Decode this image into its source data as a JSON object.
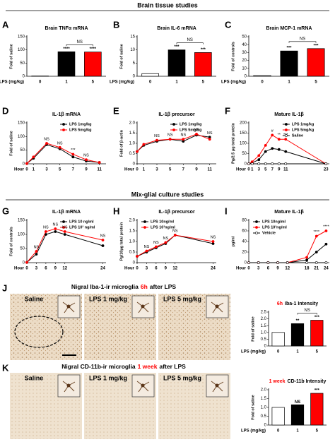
{
  "sections": [
    "Brain tissue studies",
    "Mix-glial culture studies"
  ],
  "images": [
    {
      "panel": "J",
      "title_pre": "Nigral Iba-1-ir microglia",
      "title_highlight": "6h",
      "title_post": "after LPS",
      "labels": [
        "Saline",
        "LPS 1 mg/kg",
        "LPS 5 mg/kg"
      ]
    },
    {
      "panel": "K",
      "title_pre": "Nigral CD-11b-ir microglia",
      "title_highlight": "1 week",
      "title_post": "after LPS",
      "labels": [
        "Saline",
        "LPS 1 mg/kg",
        "LPS 5 mg/kg"
      ]
    }
  ],
  "chart_data": [
    {
      "type": "bar",
      "panel": "A",
      "title": "Brain TNFα mRNA",
      "ylabel": "Fold of saline",
      "xlabel": "LPS (mg/kg)",
      "categories": [
        "0",
        "1",
        "5"
      ],
      "values": [
        1,
        93,
        92
      ],
      "colors": [
        "#ffffff",
        "#000000",
        "#ff0000"
      ],
      "ylim": [
        0,
        150
      ],
      "yticks": [
        0,
        50,
        100,
        150
      ],
      "annotations": [
        "****",
        "****",
        "NS"
      ]
    },
    {
      "type": "bar",
      "panel": "B",
      "title": "Brain IL-6 mRNA",
      "ylabel": "Fold of saline",
      "xlabel": "LPS (mg/kg)",
      "categories": [
        "0",
        "1",
        "5"
      ],
      "values": [
        1,
        10,
        9
      ],
      "colors": [
        "#ffffff",
        "#000000",
        "#ff0000"
      ],
      "ylim": [
        0,
        15
      ],
      "yticks": [
        0,
        5,
        10,
        15
      ],
      "annotations": [
        "***",
        "***",
        "NS"
      ]
    },
    {
      "type": "bar",
      "panel": "C",
      "title": "Brain MCP-1 mRNA",
      "ylabel": "Fold of controls",
      "xlabel": "LPS (mg/kg)",
      "categories": [
        "0",
        "1",
        "5"
      ],
      "values": [
        1,
        32,
        35
      ],
      "colors": [
        "#ffffff",
        "#000000",
        "#ff0000"
      ],
      "ylim": [
        0,
        50
      ],
      "yticks": [
        0,
        10,
        20,
        30,
        40,
        50
      ],
      "annotations": [
        "***",
        "***",
        "NS"
      ]
    },
    {
      "type": "line",
      "panel": "D",
      "title": "IL-1β mRNA",
      "ylabel": "Fold of saline",
      "xlabel": "Hour",
      "x": [
        0,
        1,
        3,
        5,
        7,
        9,
        11
      ],
      "xlim": [
        0,
        12
      ],
      "xticks": [
        0,
        1,
        3,
        5,
        7,
        9,
        11
      ],
      "ylim": [
        0,
        150
      ],
      "yticks": [
        0,
        50,
        100,
        150
      ],
      "legend": "upper right",
      "series": [
        {
          "name": "LPS 1mg/kg",
          "color": "#000000",
          "values": [
            1,
            20,
            70,
            55,
            25,
            10,
            5
          ]
        },
        {
          "name": "LPS 5mg/kg",
          "color": "#ff0000",
          "values": [
            1,
            25,
            75,
            60,
            35,
            15,
            5
          ]
        }
      ],
      "annotations": [
        "NS",
        "NS",
        "***",
        "NS"
      ]
    },
    {
      "type": "line",
      "panel": "E",
      "title": "IL-1β precursor",
      "ylabel": "Fold of β-actin",
      "xlabel": "Hour",
      "x": [
        0,
        1,
        3,
        5,
        7,
        9,
        11
      ],
      "xlim": [
        0,
        12
      ],
      "xticks": [
        0,
        1,
        3,
        5,
        7,
        9,
        11
      ],
      "ylim": [
        0,
        2
      ],
      "yticks": [
        0,
        {
          "value": 0.5,
          "label": "0.5"
        },
        {
          "value": 1,
          "label": "1.0"
        },
        {
          "value": 1.5,
          "label": "1.5"
        },
        {
          "value": 2,
          "label": "2.0"
        }
      ],
      "legend": "upper right",
      "series": [
        {
          "name": "LPS 1mg/kg",
          "color": "#000000",
          "values": [
            0.6,
            0.9,
            1.1,
            1.2,
            1.1,
            1.4,
            1.3
          ]
        },
        {
          "name": "LPS 5mg/kg",
          "color": "#ff0000",
          "values": [
            0.6,
            0.95,
            1.15,
            1.2,
            1.2,
            1.45,
            1.2
          ]
        }
      ],
      "annotations": [
        "NS",
        "NS",
        "NS",
        "NS",
        "NS"
      ]
    },
    {
      "type": "line",
      "panel": "F",
      "title": "Mature IL-1β",
      "ylabel": "Pg/2.5 μg total protein",
      "xlabel": "Hour",
      "x": [
        0,
        1,
        3,
        5,
        7,
        9,
        11,
        23
      ],
      "xlim": [
        0,
        24
      ],
      "xticks": [
        0,
        1,
        3,
        5,
        7,
        9,
        11,
        23
      ],
      "ylim": [
        0,
        200
      ],
      "yticks": [
        0,
        50,
        100,
        150,
        200
      ],
      "legend": "upper right",
      "series": [
        {
          "name": "LPS 1mg/kg",
          "color": "#000000",
          "values": [
            0,
            5,
            20,
            60,
            75,
            70,
            60,
            0
          ]
        },
        {
          "name": "LPS 5mg/kg",
          "color": "#ff0000",
          "values": [
            0,
            10,
            40,
            90,
            140,
            120,
            120,
            0
          ]
        },
        {
          "name": "Saline",
          "color": "#ffffff",
          "values": [
            0,
            0,
            0,
            0,
            0,
            0,
            0,
            0
          ]
        }
      ],
      "annotations": [
        "#",
        "**",
        "***"
      ]
    },
    {
      "type": "line",
      "panel": "G",
      "title": "IL-1β mRNA",
      "ylabel": "Fold of controls",
      "xlabel": "Hour",
      "x": [
        0,
        3,
        6,
        9,
        12,
        24
      ],
      "xlim": [
        0,
        25
      ],
      "xticks": [
        0,
        3,
        6,
        9,
        12,
        24
      ],
      "ylim": [
        0,
        150
      ],
      "yticks": [
        0,
        50,
        100,
        150
      ],
      "legend": "upper right",
      "series": [
        {
          "name": "LPS 10 ng/ml",
          "color": "#000000",
          "values": [
            1,
            30,
            100,
            110,
            100,
            60
          ]
        },
        {
          "name": "LPS 10³ ng/ml",
          "color": "#ff0000",
          "values": [
            1,
            40,
            110,
            120,
            110,
            80
          ]
        }
      ],
      "annotations": [
        "NS",
        "NS",
        "NS",
        "NS",
        "NS"
      ]
    },
    {
      "type": "line",
      "panel": "H",
      "title": "IL-1β precursor",
      "ylabel": "Pg/10μg total protein",
      "xlabel": "Hour",
      "x": [
        0,
        3,
        6,
        9,
        12,
        24
      ],
      "xlim": [
        0,
        25
      ],
      "xticks": [
        0,
        3,
        6,
        9,
        12,
        24
      ],
      "ylim": [
        0,
        2
      ],
      "yticks": [
        0,
        {
          "value": 0.5,
          "label": "0.5"
        },
        {
          "value": 1,
          "label": "1.0"
        },
        {
          "value": 1.5,
          "label": "1.5"
        },
        {
          "value": 2,
          "label": "2.0"
        }
      ],
      "legend": "upper left",
      "series": [
        {
          "name": "LPS 10ng/ml",
          "color": "#000000",
          "values": [
            0.3,
            0.5,
            0.7,
            0.9,
            1.3,
            0.9
          ]
        },
        {
          "name": "LPS 10³ng/ml",
          "color": "#ff0000",
          "values": [
            0.3,
            0.55,
            0.75,
            0.95,
            1.3,
            1.0
          ]
        }
      ],
      "annotations": [
        "NS",
        "NS",
        "NS",
        "NS",
        "NS"
      ]
    },
    {
      "type": "line",
      "panel": "I",
      "title": "Mature IL-1β",
      "ylabel": "pg/ml",
      "xlabel": "Hour",
      "x": [
        0,
        3,
        6,
        9,
        12,
        18,
        21,
        24
      ],
      "xlim": [
        0,
        25
      ],
      "xticks": [
        0,
        3,
        6,
        9,
        12,
        18,
        21,
        24
      ],
      "ylim": [
        0,
        80
      ],
      "yticks": [
        0,
        20,
        40,
        60,
        80
      ],
      "legend": "upper left",
      "series": [
        {
          "name": "LPS 10ng/ml",
          "color": "#000000",
          "values": [
            0,
            0,
            0,
            0,
            0,
            5,
            20,
            35
          ]
        },
        {
          "name": "LPS 10³ng/ml",
          "color": "#ff0000",
          "values": [
            0,
            0,
            0,
            0,
            0,
            10,
            50,
            60
          ]
        },
        {
          "name": "Vehicle",
          "color": "#ffffff",
          "values": [
            0,
            0,
            0,
            0,
            0,
            0,
            0,
            0
          ]
        }
      ],
      "annotations": [
        "****",
        "****"
      ]
    },
    {
      "type": "bar",
      "title_highlight": "6h",
      "title": "Iba-1 Intensity",
      "ylabel": "Fold of saline",
      "xlabel": "LPS (mg/kg)",
      "categories": [
        "0",
        "1",
        "5"
      ],
      "values": [
        1.0,
        1.65,
        1.9
      ],
      "colors": [
        "#ffffff",
        "#000000",
        "#ff0000"
      ],
      "ylim": [
        0,
        2.5
      ],
      "yticks": [
        0,
        {
          "value": 0.5,
          "label": "0.5"
        },
        {
          "value": 1,
          "label": "1.0"
        },
        {
          "value": 1.5,
          "label": "1.5"
        },
        {
          "value": 2,
          "label": "2.0"
        },
        {
          "value": 2.5,
          "label": "2.5"
        }
      ],
      "annotations": [
        "**",
        "***",
        "NS"
      ]
    },
    {
      "type": "bar",
      "title_highlight": "1 week",
      "title": "CD-11b Intensity",
      "ylabel": "Fold of saline",
      "xlabel": "LPS (mg/kg)",
      "categories": [
        "0",
        "1",
        "5"
      ],
      "values": [
        1.0,
        1.15,
        1.8
      ],
      "colors": [
        "#ffffff",
        "#000000",
        "#ff0000"
      ],
      "ylim": [
        0,
        2
      ],
      "yticks": [
        0,
        {
          "value": 0.5,
          "label": "0.5"
        },
        {
          "value": 1,
          "label": "1.0"
        },
        {
          "value": 1.5,
          "label": "1.5"
        },
        {
          "value": 2,
          "label": "2.0"
        }
      ],
      "annotations": [
        "NS",
        "***"
      ]
    }
  ]
}
